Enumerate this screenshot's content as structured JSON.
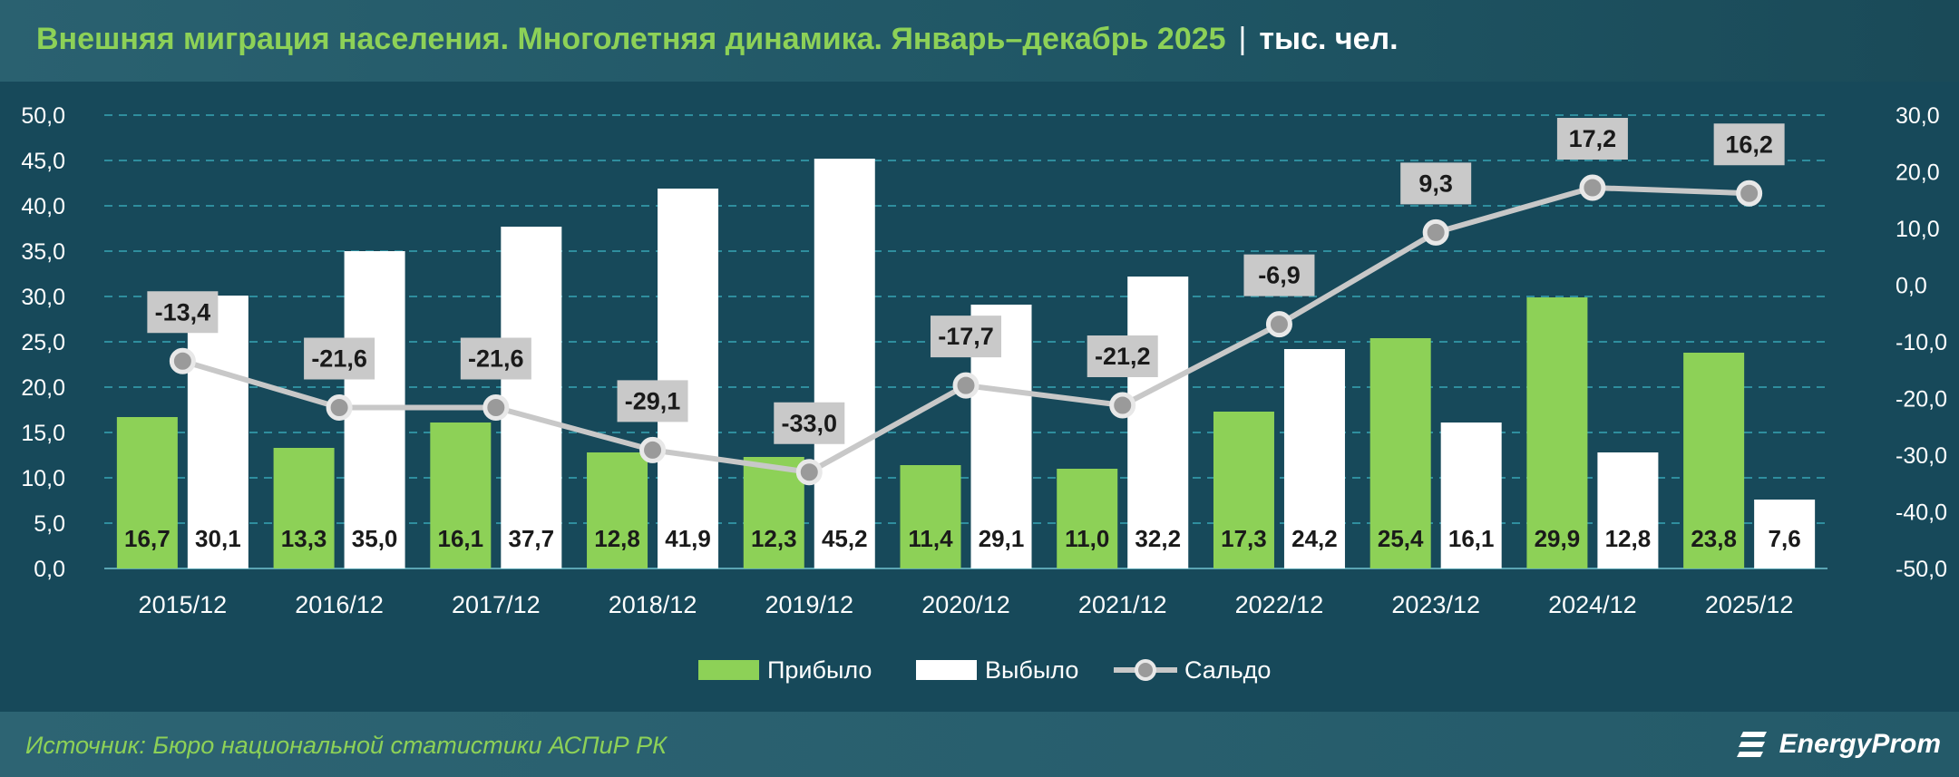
{
  "header": {
    "title": "Внешняя миграция населения. Многолетняя динамика. Январь–декабрь 2025",
    "separator": "|",
    "unit": "тыс. чел."
  },
  "footer": {
    "source": "Источник: Бюро национальной статистики АСПиР РК",
    "logo_text": "EnergyProm",
    "logo_icon": "energyprom-logo-icon"
  },
  "colors": {
    "arrived": "#8dd157",
    "departed": "#ffffff",
    "balance_line": "#c8c8c8",
    "balance_label_bg": "#c9c9c9",
    "grid": "#2f8e9e",
    "background": "#17495a"
  },
  "chart_data": {
    "type": "bar",
    "categories": [
      "2015/12",
      "2016/12",
      "2017/12",
      "2018/12",
      "2019/12",
      "2020/12",
      "2021/12",
      "2022/12",
      "2023/12",
      "2024/12",
      "2025/12"
    ],
    "series": [
      {
        "name": "Прибыло",
        "type": "bar",
        "axis": "left",
        "values": [
          16.7,
          13.3,
          16.1,
          12.8,
          12.3,
          11.4,
          11.0,
          17.3,
          25.4,
          29.9,
          23.8
        ]
      },
      {
        "name": "Выбыло",
        "type": "bar",
        "axis": "left",
        "values": [
          30.1,
          35.0,
          37.7,
          41.9,
          45.2,
          29.1,
          32.2,
          24.2,
          16.1,
          12.8,
          7.6
        ]
      },
      {
        "name": "Сальдо",
        "type": "line",
        "axis": "right",
        "values": [
          -13.4,
          -21.6,
          -21.6,
          -29.1,
          -33.0,
          -17.7,
          -21.2,
          -6.9,
          9.3,
          17.2,
          16.2
        ]
      }
    ],
    "y_left": {
      "min": 0,
      "max": 50,
      "step": 5,
      "tick_labels": [
        "0,0",
        "5,0",
        "10,0",
        "15,0",
        "20,0",
        "25,0",
        "30,0",
        "35,0",
        "40,0",
        "45,0",
        "50,0"
      ]
    },
    "y_right": {
      "min": -50,
      "max": 30,
      "step": 10,
      "tick_labels": [
        "-50,0",
        "-40,0",
        "-30,0",
        "-20,0",
        "-10,0",
        "0,0",
        "10,0",
        "20,0",
        "30,0"
      ]
    },
    "grid": true,
    "legend_position": "bottom"
  }
}
